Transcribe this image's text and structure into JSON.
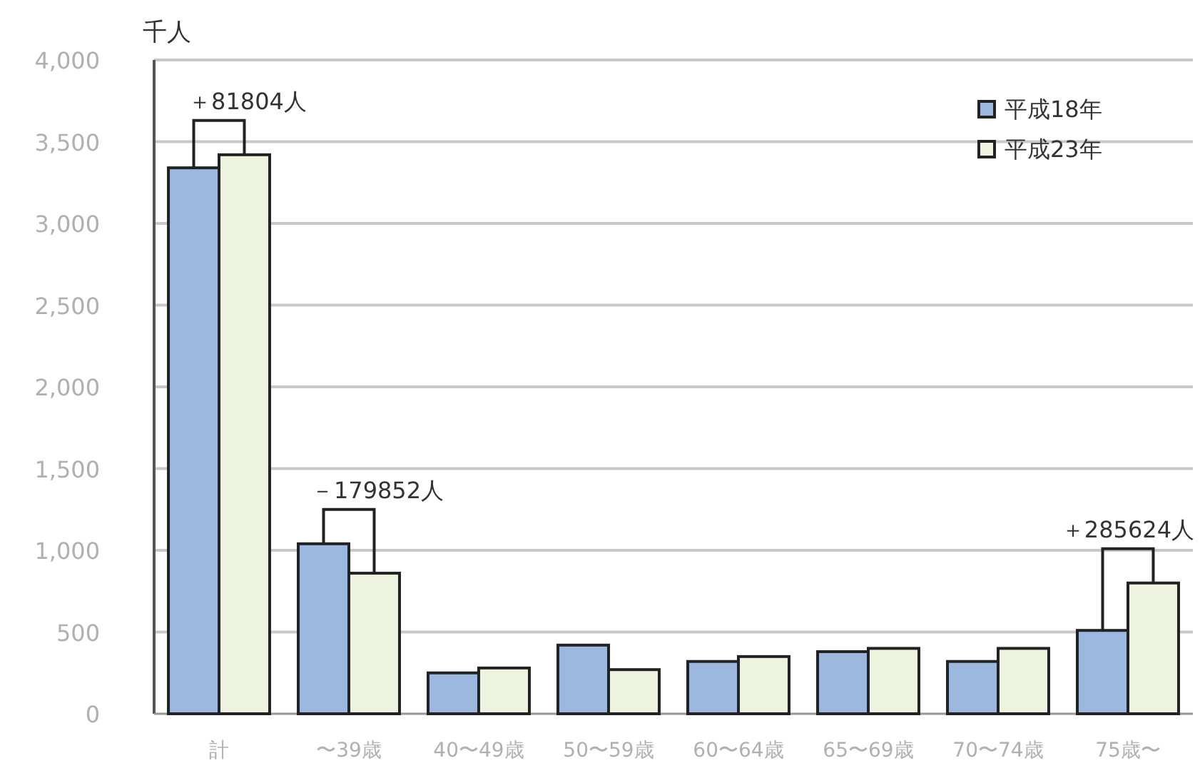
{
  "chart_data": {
    "type": "bar",
    "ylabel": "千人",
    "categories": [
      "計",
      "〜39歳",
      "40〜49歳",
      "50〜59歳",
      "60〜64歳",
      "65〜69歳",
      "70〜74歳",
      "75歳〜"
    ],
    "series": [
      {
        "name": "平成18年",
        "color": "#9db8de",
        "values": [
          3340,
          1040,
          250,
          420,
          320,
          380,
          320,
          510
        ]
      },
      {
        "name": "平成23年",
        "color": "#eef3e0",
        "values": [
          3420,
          860,
          280,
          270,
          350,
          400,
          400,
          800
        ]
      }
    ],
    "ylim": [
      0,
      4000
    ],
    "yticks": [
      0,
      500,
      {
        "value": 1000,
        "label": "1,000"
      },
      {
        "value": 1500,
        "label": "1,500"
      },
      {
        "value": 2000,
        "label": "2,000"
      },
      {
        "value": 2500,
        "label": "2,500"
      },
      {
        "value": 3000,
        "label": "3,000"
      },
      {
        "value": 3500,
        "label": "3,500"
      },
      {
        "value": 4000,
        "label": "4,000"
      }
    ],
    "grid": "y",
    "legend": "top right",
    "annotations": [
      {
        "text": "＋81804人",
        "x": "計",
        "y": 3420
      },
      {
        "text": "－179852人",
        "x": "〜39歳",
        "y": 1040
      },
      {
        "text": "＋285624人",
        "x": "75歳〜",
        "y": 800
      }
    ]
  }
}
